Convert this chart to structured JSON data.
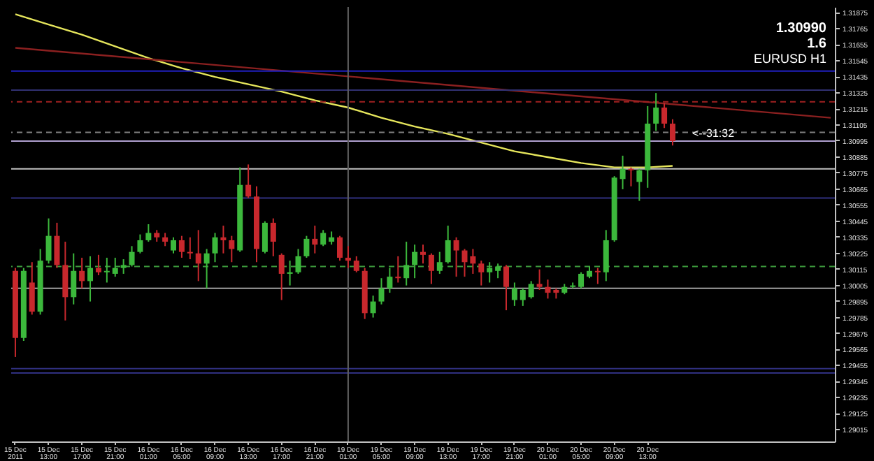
{
  "chart_data": {
    "type": "candlestick",
    "categories": [
      "15 Dec 2011",
      null,
      null,
      null,
      "15 Dec 13:00",
      null,
      null,
      null,
      "15 Dec 17:00",
      null,
      null,
      null,
      "15 Dec 21:00",
      null,
      null,
      null,
      "16 Dec 01:00",
      null,
      null,
      null,
      "16 Dec 05:00",
      null,
      null,
      null,
      "16 Dec 09:00",
      null,
      null,
      null,
      "16 Dec 13:00",
      null,
      null,
      null,
      "16 Dec 17:00",
      null,
      null,
      null,
      "16 Dec 21:00",
      null,
      null,
      null,
      "19 Dec 01:00",
      null,
      null,
      null,
      "19 Dec 05:00",
      null,
      null,
      null,
      "19 Dec 09:00",
      null,
      null,
      null,
      "19 Dec 13:00",
      null,
      null,
      null,
      "19 Dec 17:00",
      null,
      null,
      null,
      "19 Dec 21:00",
      null,
      null,
      null,
      "20 Dec 01:00",
      null,
      null,
      null,
      "20 Dec 05:00",
      null,
      null,
      null,
      "20 Dec 09:00",
      null,
      null,
      null,
      "20 Dec 13:00",
      null,
      null,
      null,
      null,
      null,
      null,
      null,
      null,
      null,
      null,
      null,
      null,
      null,
      null,
      null,
      null,
      null,
      null,
      null,
      null,
      null,
      null
    ],
    "ohlc": [
      [
        1.301,
        1.3012,
        1.2951,
        1.2964
      ],
      [
        1.2964,
        1.3012,
        1.2962,
        1.301
      ],
      [
        1.3002,
        1.3016,
        1.298,
        1.2982
      ],
      [
        1.2982,
        1.3025,
        1.298,
        1.3017
      ],
      [
        1.3017,
        1.3046,
        1.3015,
        1.3034
      ],
      [
        1.3034,
        1.3043,
        1.3012,
        1.3014
      ],
      [
        1.3014,
        1.303,
        1.2976,
        1.2992
      ],
      [
        1.2992,
        1.3022,
        1.2987,
        1.301
      ],
      [
        1.301,
        1.3019,
        1.2998,
        1.3003
      ],
      [
        1.3003,
        1.302,
        1.2989,
        1.3012
      ],
      [
        1.3012,
        1.3021,
        1.3007,
        1.3009
      ],
      [
        1.3009,
        1.3019,
        1.3002,
        1.301
      ],
      [
        1.3008,
        1.3019,
        1.3006,
        1.3012
      ],
      [
        1.3012,
        1.3018,
        1.3008,
        1.3014
      ],
      [
        1.3014,
        1.3027,
        1.3013,
        1.3023
      ],
      [
        1.3023,
        1.3035,
        1.3022,
        1.3031
      ],
      [
        1.3031,
        1.3042,
        1.303,
        1.3036
      ],
      [
        1.3036,
        1.3038,
        1.303,
        1.3033
      ],
      [
        1.3033,
        1.3036,
        1.3027,
        1.303
      ],
      [
        1.3024,
        1.3033,
        1.3022,
        1.3031
      ],
      [
        1.3031,
        1.3034,
        1.3019,
        1.3023
      ],
      [
        1.3023,
        1.3033,
        1.3018,
        1.3022
      ],
      [
        1.3022,
        1.3038,
        1.3003,
        1.3015
      ],
      [
        1.3015,
        1.3025,
        1.2998,
        1.3022
      ],
      [
        1.3022,
        1.3036,
        1.3016,
        1.3033
      ],
      [
        1.3033,
        1.3041,
        1.3022,
        1.3031
      ],
      [
        1.3031,
        1.3034,
        1.3016,
        1.3025
      ],
      [
        1.3024,
        1.3081,
        1.3023,
        1.3069
      ],
      [
        1.3069,
        1.3083,
        1.306,
        1.3061
      ],
      [
        1.3061,
        1.3068,
        1.3016,
        1.3025
      ],
      [
        1.3023,
        1.3044,
        1.3022,
        1.3043
      ],
      [
        1.3043,
        1.3046,
        1.302,
        1.303
      ],
      [
        1.3021,
        1.3022,
        1.299,
        1.3008
      ],
      [
        1.3008,
        1.3017,
        1.3,
        1.3009
      ],
      [
        1.3009,
        1.3025,
        1.3008,
        1.302
      ],
      [
        1.302,
        1.3034,
        1.3019,
        1.3032
      ],
      [
        1.3032,
        1.3041,
        1.3022,
        1.3028
      ],
      [
        1.3028,
        1.3038,
        1.3027,
        1.3036
      ],
      [
        1.303,
        1.3037,
        1.3028,
        1.3033
      ],
      [
        1.3033,
        1.3034,
        1.3017,
        1.3019
      ],
      [
        1.3019,
        1.3027,
        1.3012,
        1.3017
      ],
      [
        1.3017,
        1.302,
        1.3009,
        1.301
      ],
      [
        1.301,
        1.3012,
        1.2977,
        1.2981
      ],
      [
        1.2981,
        1.2993,
        1.2978,
        1.2989
      ],
      [
        1.2989,
        1.3005,
        1.2987,
        1.2998
      ],
      [
        1.2998,
        1.3012,
        1.2995,
        1.3006
      ],
      [
        1.3006,
        1.302,
        1.3002,
        1.3005
      ],
      [
        1.3005,
        1.303,
        1.3,
        1.3014
      ],
      [
        1.3014,
        1.3028,
        1.3005,
        1.3023
      ],
      [
        1.3023,
        1.3028,
        1.3015,
        1.3021
      ],
      [
        1.3021,
        1.3022,
        1.3001,
        1.301
      ],
      [
        1.301,
        1.3023,
        1.3008,
        1.3016
      ],
      [
        1.3016,
        1.3041,
        1.3015,
        1.3031
      ],
      [
        1.3031,
        1.3033,
        1.3006,
        1.3024
      ],
      [
        1.3024,
        1.3025,
        1.3006,
        1.3016
      ],
      [
        1.302,
        1.3025,
        1.3008,
        1.3015
      ],
      [
        1.3015,
        1.3017,
        1.3,
        1.3009
      ],
      [
        1.3009,
        1.3016,
        1.3002,
        1.3012
      ],
      [
        1.301,
        1.3015,
        1.3005,
        1.3013
      ],
      [
        1.3013,
        1.3014,
        1.2983,
        1.2999
      ],
      [
        1.299,
        1.3002,
        1.2986,
        1.2998
      ],
      [
        1.299,
        1.2998,
        1.2986,
        1.2997
      ],
      [
        1.2992,
        1.3003,
        1.2991,
        1.3001
      ],
      [
        1.3001,
        1.3011,
        1.2997,
        1.2999
      ],
      [
        1.2999,
        1.3004,
        1.2991,
        1.2995
      ],
      [
        1.2997,
        1.2998,
        1.2991,
        1.2995
      ],
      [
        1.2995,
        1.3001,
        1.2994,
        1.2999
      ],
      [
        1.2999,
        1.3002,
        1.2998,
        1.3
      ],
      [
        1.2999,
        1.3009,
        1.2998,
        1.3008
      ],
      [
        1.3006,
        1.3013,
        1.3005,
        1.301
      ],
      [
        1.301,
        1.3012,
        1.3001,
        1.3009
      ],
      [
        1.3009,
        1.3038,
        1.3003,
        1.3031
      ],
      [
        1.3031,
        1.3075,
        1.303,
        1.3074
      ],
      [
        1.3073,
        1.3089,
        1.3066,
        1.308
      ],
      [
        1.308,
        1.3081,
        1.3068,
        1.3079
      ],
      [
        1.3071,
        1.308,
        1.3058,
        1.3079
      ],
      [
        1.3079,
        1.3123,
        1.3067,
        1.3111
      ],
      [
        1.3111,
        1.3132,
        1.3106,
        1.3122
      ],
      [
        1.3122,
        1.3125,
        1.3108,
        1.3111
      ],
      [
        1.3111,
        1.3114,
        1.3096,
        1.3099
      ],
      null,
      null,
      null,
      null,
      null,
      null,
      null,
      null,
      null,
      null,
      null,
      null,
      null,
      null,
      null,
      null,
      null,
      null,
      null
    ],
    "colors": [
      "#c8282d",
      "#3cb83c",
      "#c8282d",
      "#3cb83c",
      "#3cb83c",
      "#c8282d",
      "#c8282d",
      "#3cb83c",
      "#c8282d",
      "#3cb83c",
      "#c8282d",
      "#3cb83c",
      "#3cb83c",
      "#3cb83c",
      "#3cb83c",
      "#3cb83c",
      "#3cb83c",
      "#c8282d",
      "#c8282d",
      "#3cb83c",
      "#c8282d",
      "#c8282d",
      "#c8282d",
      "#3cb83c",
      "#3cb83c",
      "#c8282d",
      "#c8282d",
      "#3cb83c",
      "#c8282d",
      "#c8282d",
      "#3cb83c",
      "#c8282d",
      "#c8282d",
      "#3cb83c",
      "#3cb83c",
      "#3cb83c",
      "#c8282d",
      "#3cb83c",
      "#3cb83c",
      "#c8282d",
      "#c8282d",
      "#c8282d",
      "#c8282d",
      "#3cb83c",
      "#3cb83c",
      "#3cb83c",
      "#c8282d",
      "#3cb83c",
      "#3cb83c",
      "#c8282d",
      "#c8282d",
      "#3cb83c",
      "#3cb83c",
      "#c8282d",
      "#c8282d",
      "#c8282d",
      "#c8282d",
      "#3cb83c",
      "#3cb83c",
      "#c8282d",
      "#3cb83c",
      "#3cb83c",
      "#3cb83c",
      "#c8282d",
      "#c8282d",
      "#c8282d",
      "#3cb83c",
      "#3cb83c",
      "#3cb83c",
      "#3cb83c",
      "#c8282d",
      "#3cb83c",
      "#3cb83c",
      "#3cb83c",
      "#c8282d",
      "#3cb83c",
      "#3cb83c",
      "#3cb83c",
      "#c8282d",
      "#c8282d",
      null,
      null,
      null,
      null,
      null,
      null,
      null,
      null,
      null,
      null,
      null,
      null,
      null,
      null,
      null,
      null,
      null,
      null,
      null
    ],
    "series": [
      {
        "type": "line",
        "color": "#e6e65c",
        "values": [
          1.3186,
          null,
          null,
          null,
          1.3179,
          null,
          null,
          null,
          1.3172,
          null,
          null,
          null,
          1.3164,
          null,
          null,
          null,
          1.3156,
          null,
          null,
          null,
          1.3149,
          null,
          null,
          null,
          1.3143,
          null,
          null,
          null,
          1.3138,
          null,
          null,
          null,
          1.3133,
          null,
          null,
          null,
          1.3127,
          null,
          null,
          null,
          1.3122,
          null,
          null,
          null,
          1.3115,
          null,
          null,
          null,
          1.3109,
          null,
          null,
          null,
          1.3104,
          null,
          null,
          null,
          1.3098,
          null,
          null,
          null,
          1.3092,
          null,
          null,
          null,
          1.3088,
          null,
          null,
          null,
          1.3084,
          null,
          null,
          null,
          1.3081,
          null,
          null,
          null,
          1.3081,
          null,
          null,
          1.3082,
          null,
          null,
          null,
          null,
          null,
          null,
          null,
          null,
          null,
          null,
          null,
          null,
          null,
          null,
          null,
          null,
          null,
          null,
          null
        ]
      },
      {
        "type": "line",
        "color": "#8b2020",
        "values": [
          1.3163,
          null,
          null,
          null,
          null,
          null,
          null,
          null,
          null,
          null,
          null,
          null,
          null,
          null,
          null,
          null,
          null,
          null,
          null,
          null,
          null,
          null,
          null,
          null,
          null,
          null,
          null,
          null,
          null,
          null,
          null,
          null,
          null,
          null,
          null,
          null,
          null,
          null,
          null,
          null,
          null,
          null,
          null,
          null,
          null,
          null,
          null,
          null,
          null,
          null,
          null,
          null,
          null,
          null,
          null,
          null,
          null,
          null,
          null,
          null,
          null,
          null,
          null,
          null,
          null,
          null,
          null,
          null,
          null,
          null,
          null,
          null,
          null,
          null,
          null,
          null,
          null,
          null,
          null,
          null,
          null,
          null,
          null,
          null,
          null,
          null,
          null,
          null,
          null,
          null,
          null,
          null,
          null,
          null,
          null,
          null,
          null,
          null,
          1.3115
        ]
      }
    ],
    "ylim": [
      1.2893,
      1.3191
    ],
    "yticks": [
      1.29015,
      1.29125,
      1.29235,
      1.29345,
      1.29455,
      1.29565,
      1.29675,
      1.29785,
      1.29895,
      1.30005,
      1.30115,
      1.30225,
      1.30335,
      1.30445,
      1.30555,
      1.30665,
      1.30775,
      1.30885,
      1.30995,
      1.31105,
      1.31215,
      1.31325,
      1.31435,
      1.31545,
      1.31655,
      1.31765,
      1.31875
    ],
    "ref_lines": [
      {
        "axis": "y",
        "value": 1.3147,
        "color": "#2020c0",
        "line_style": "solid"
      },
      {
        "axis": "y",
        "value": 1.3134,
        "color": "#303070",
        "line_style": "solid"
      },
      {
        "axis": "y",
        "value": 1.3126,
        "color": "#a02020",
        "line_style": "dashed"
      },
      {
        "axis": "y",
        "value": 1.3105,
        "color": "#808080",
        "line_style": "dashed"
      },
      {
        "axis": "y",
        "value": 1.3099,
        "color": "#b0a0d0",
        "line_style": "solid"
      },
      {
        "axis": "y",
        "value": 1.308,
        "color": "#c0c0c0",
        "line_style": "solid"
      },
      {
        "axis": "y",
        "value": 1.306,
        "color": "#303080",
        "line_style": "solid"
      },
      {
        "axis": "y",
        "value": 1.3013,
        "color": "#3c9a3c",
        "line_style": "dashed"
      },
      {
        "axis": "y",
        "value": 1.2998,
        "color": "#a0a0a0",
        "line_style": "solid"
      },
      {
        "axis": "y",
        "value": 1.2943,
        "color": "#303080",
        "line_style": "solid"
      },
      {
        "axis": "y",
        "value": 1.294,
        "color": "#303080",
        "line_style": "solid"
      },
      {
        "axis": "x",
        "value": "19 Dec 01:00",
        "color": "#606060",
        "line_style": "solid"
      }
    ],
    "annotations": [
      "1.30990",
      "1.6",
      "EURUSD H1",
      "<--31:32"
    ]
  }
}
